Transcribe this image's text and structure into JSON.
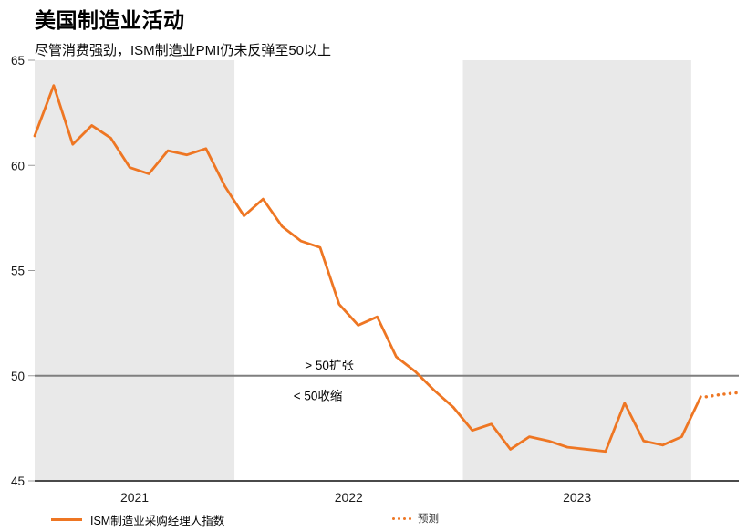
{
  "header": {
    "title": "美国制造业活动",
    "subtitle": "尽管消费强劲，ISM制造业PMI仍未反弹至50以上"
  },
  "chart_data": {
    "type": "line",
    "title": "美国制造业活动",
    "subtitle": "尽管消费强劲，ISM制造业PMI仍未反弹至50以上",
    "xlabel": "",
    "ylabel": "",
    "ylim": [
      45,
      65
    ],
    "yticks": [
      45,
      50,
      55,
      60,
      65
    ],
    "xticks": [
      "2021",
      "2022",
      "2023"
    ],
    "grid": false,
    "legend_position": "bottom",
    "reference_line": {
      "value": 50,
      "color": "#7f7f7f"
    },
    "band_years_shaded": [
      "2021",
      "2023"
    ],
    "colors": {
      "line": "#ee7623",
      "band": "#e9e9e9",
      "axis": "#4a4a4a",
      "tick": "#9a9a9a",
      "text": "#1a1a1a"
    },
    "series": [
      {
        "name": "ISM制造业采购经理人指数",
        "style": "solid",
        "months": [
          "2021-02",
          "2021-03",
          "2021-04",
          "2021-05",
          "2021-06",
          "2021-07",
          "2021-08",
          "2021-09",
          "2021-10",
          "2021-11",
          "2021-12",
          "2022-01",
          "2022-02",
          "2022-03",
          "2022-04",
          "2022-05",
          "2022-06",
          "2022-07",
          "2022-08",
          "2022-09",
          "2022-10",
          "2022-11",
          "2022-12",
          "2023-01",
          "2023-02",
          "2023-03",
          "2023-04",
          "2023-05",
          "2023-06",
          "2023-07",
          "2023-08",
          "2023-09",
          "2023-10",
          "2023-11",
          "2023-12",
          "2024-01"
        ],
        "values": [
          61.4,
          63.8,
          61.0,
          61.9,
          61.3,
          59.9,
          59.6,
          60.7,
          60.5,
          60.8,
          59.0,
          57.6,
          58.4,
          57.1,
          56.4,
          56.1,
          53.4,
          52.4,
          52.8,
          50.9,
          50.2,
          49.3,
          48.5,
          47.4,
          47.7,
          46.5,
          47.1,
          46.9,
          46.6,
          46.5,
          46.4,
          48.7,
          46.9,
          46.7,
          47.1,
          49.0
        ]
      },
      {
        "name": "预测",
        "style": "dotted",
        "months": [
          "2024-02",
          "2024-03"
        ],
        "values": [
          49.1,
          49.2
        ]
      }
    ],
    "annotations": [
      {
        "id": "expansion",
        "text": "> 50扩张",
        "x_index": 14.2,
        "value": 50.3,
        "align": "start"
      },
      {
        "id": "contraction",
        "text": "< 50收缩",
        "x_index": 13.6,
        "value": 48.85,
        "align": "start"
      }
    ]
  },
  "legend": {
    "series_label": "ISM制造业采购经理人指数",
    "forecast_label": "预测"
  }
}
